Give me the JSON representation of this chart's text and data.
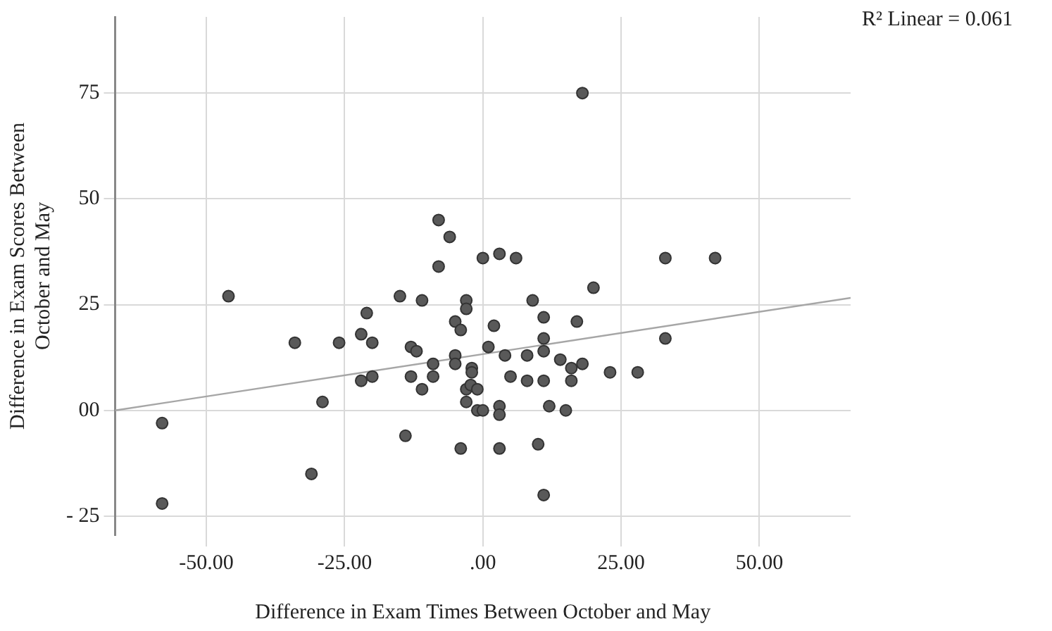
{
  "chart_data": {
    "type": "scatter",
    "xlabel": "Difference in Exam Times Between October and May",
    "ylabel": "Difference in Exam Scores Between October and May",
    "annotations": [
      "R² Linear = 0.061"
    ],
    "xlim": [
      -66.5,
      66.5
    ],
    "ylim": [
      -29.5,
      93
    ],
    "xticks": [
      {
        "value": -50,
        "label": "-50.00"
      },
      {
        "value": -25,
        "label": "-25.00"
      },
      {
        "value": 0,
        "label": ".00"
      },
      {
        "value": 25,
        "label": "25.00"
      },
      {
        "value": 50,
        "label": "50.00"
      }
    ],
    "yticks": [
      {
        "value": -25,
        "label": "- 25"
      },
      {
        "value": 0,
        "label": "00"
      },
      25,
      50,
      75
    ],
    "grid": true,
    "legend": false,
    "series": [
      {
        "marker": "circle",
        "color": "#595959",
        "x": [
          -58,
          -58,
          -46,
          -34,
          -31,
          -29,
          -26,
          -22,
          -21,
          -22,
          -20,
          -20,
          -15,
          -14,
          -13,
          -12,
          -13,
          -11,
          -11,
          -9,
          -9,
          -8,
          -8,
          -6,
          -5,
          -5,
          -5,
          -4,
          -4,
          -3,
          -3,
          -3,
          -3,
          -2,
          -2,
          -2.2,
          -1,
          -1,
          0,
          0,
          1,
          2,
          3,
          3,
          3,
          3,
          4,
          5,
          6,
          8,
          8,
          9,
          10,
          11,
          11,
          11,
          11,
          11,
          12,
          14,
          15,
          16,
          16,
          17,
          18,
          18,
          20,
          23,
          28,
          33,
          33,
          42
        ],
        "values": [
          -3,
          -22,
          27,
          16,
          -15,
          2,
          16,
          18,
          23,
          7,
          16,
          8,
          27,
          -6,
          15,
          14,
          8,
          26,
          5,
          11,
          8,
          45,
          34,
          41,
          21,
          13,
          11,
          19,
          -9,
          26,
          24,
          5,
          2,
          10,
          9,
          6,
          5,
          0,
          0,
          36,
          15,
          20,
          37,
          1,
          -1,
          -9,
          13,
          8,
          36,
          13,
          7,
          26,
          -8,
          22,
          17,
          14,
          7,
          -20,
          1,
          12,
          0,
          10,
          7,
          21,
          11,
          75,
          29,
          9,
          9,
          36,
          17,
          36
        ]
      },
      {
        "type": "line",
        "marker": "none",
        "color": "#a6a6a6",
        "x": [
          -66.5,
          66.5
        ],
        "values": [
          0,
          26.6
        ]
      }
    ]
  }
}
